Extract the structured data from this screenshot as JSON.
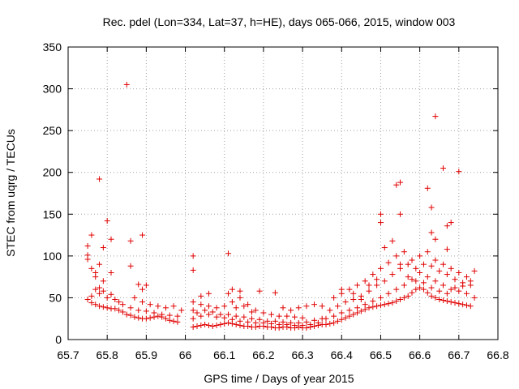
{
  "chart_data": {
    "type": "scatter",
    "title": "Rec. pdel (Lon=334, Lat=37, h=HE), days 065-066, 2015, window 003",
    "xlabel": "GPS time / Days of year 2015",
    "ylabel": "STEC from uqrg / TECUs",
    "xlim": [
      65.7,
      66.8
    ],
    "ylim": [
      0,
      350
    ],
    "xticks": [
      "65.7",
      "65.8",
      "65.9",
      "66",
      "66.1",
      "66.2",
      "66.3",
      "66.4",
      "66.5",
      "66.6",
      "66.7",
      "66.8"
    ],
    "yticks": [
      "0",
      "50",
      "100",
      "150",
      "200",
      "250",
      "300",
      "350"
    ],
    "grid": true,
    "marker": "+",
    "color": "#e00000",
    "series": [
      {
        "name": "STEC",
        "points": [
          [
            65.75,
            112
          ],
          [
            65.75,
            101
          ],
          [
            65.75,
            96
          ],
          [
            65.76,
            125
          ],
          [
            65.76,
            85
          ],
          [
            65.77,
            80
          ],
          [
            65.77,
            75
          ],
          [
            65.78,
            192
          ],
          [
            65.78,
            90
          ],
          [
            65.78,
            62
          ],
          [
            65.79,
            110
          ],
          [
            65.79,
            70
          ],
          [
            65.8,
            142
          ],
          [
            65.81,
            120
          ],
          [
            65.81,
            80
          ],
          [
            65.85,
            305
          ],
          [
            65.86,
            118
          ],
          [
            65.86,
            88
          ],
          [
            65.89,
            125
          ],
          [
            65.88,
            66
          ],
          [
            65.89,
            60
          ],
          [
            65.9,
            65
          ],
          [
            66.02,
            100
          ],
          [
            66.02,
            83
          ],
          [
            66.11,
            103
          ],
          [
            66.64,
            267
          ],
          [
            66.66,
            205
          ],
          [
            66.7,
            201
          ],
          [
            66.54,
            185
          ],
          [
            66.55,
            188
          ],
          [
            66.62,
            181
          ],
          [
            66.63,
            158
          ],
          [
            66.55,
            150
          ],
          [
            66.5,
            150
          ],
          [
            66.5,
            140
          ],
          [
            66.67,
            136
          ],
          [
            66.68,
            140
          ],
          [
            66.64,
            120
          ],
          [
            66.63,
            128
          ],
          [
            66.67,
            108
          ],
          [
            65.75,
            48
          ],
          [
            65.76,
            44
          ],
          [
            65.77,
            42
          ],
          [
            65.78,
            40
          ],
          [
            65.79,
            39
          ],
          [
            65.8,
            38
          ],
          [
            65.81,
            37
          ],
          [
            65.82,
            37
          ],
          [
            65.83,
            35
          ],
          [
            65.84,
            33
          ],
          [
            65.85,
            30
          ],
          [
            65.86,
            29
          ],
          [
            65.87,
            27
          ],
          [
            65.88,
            26
          ],
          [
            65.89,
            25
          ],
          [
            65.9,
            25
          ],
          [
            65.91,
            26
          ],
          [
            65.92,
            27
          ],
          [
            65.93,
            28
          ],
          [
            65.94,
            27
          ],
          [
            65.95,
            25
          ],
          [
            65.96,
            23
          ],
          [
            65.97,
            22
          ],
          [
            65.98,
            21
          ],
          [
            65.76,
            52
          ],
          [
            65.78,
            55
          ],
          [
            65.8,
            50
          ],
          [
            65.82,
            48
          ],
          [
            65.84,
            42
          ],
          [
            65.86,
            38
          ],
          [
            65.88,
            35
          ],
          [
            65.9,
            34
          ],
          [
            65.92,
            32
          ],
          [
            65.94,
            30
          ],
          [
            65.96,
            29
          ],
          [
            65.98,
            28
          ],
          [
            65.77,
            60
          ],
          [
            65.79,
            58
          ],
          [
            65.81,
            54
          ],
          [
            65.83,
            45
          ],
          [
            65.87,
            50
          ],
          [
            65.89,
            45
          ],
          [
            65.91,
            42
          ],
          [
            65.93,
            40
          ],
          [
            65.95,
            38
          ],
          [
            65.97,
            40
          ],
          [
            65.99,
            35
          ],
          [
            66.02,
            15
          ],
          [
            66.03,
            16
          ],
          [
            66.04,
            17
          ],
          [
            66.05,
            18
          ],
          [
            66.06,
            17
          ],
          [
            66.07,
            16
          ],
          [
            66.08,
            17
          ],
          [
            66.09,
            18
          ],
          [
            66.1,
            19
          ],
          [
            66.11,
            20
          ],
          [
            66.12,
            19
          ],
          [
            66.13,
            18
          ],
          [
            66.14,
            17
          ],
          [
            66.15,
            16
          ],
          [
            66.16,
            16
          ],
          [
            66.17,
            15
          ],
          [
            66.18,
            15
          ],
          [
            66.19,
            16
          ],
          [
            66.2,
            16
          ],
          [
            66.21,
            15
          ],
          [
            66.22,
            15
          ],
          [
            66.23,
            14
          ],
          [
            66.24,
            14
          ],
          [
            66.25,
            15
          ],
          [
            66.26,
            15
          ],
          [
            66.27,
            14
          ],
          [
            66.28,
            14
          ],
          [
            66.29,
            15
          ],
          [
            66.3,
            14
          ],
          [
            66.31,
            14
          ],
          [
            66.32,
            15
          ],
          [
            66.33,
            16
          ],
          [
            66.34,
            17
          ],
          [
            66.35,
            18
          ],
          [
            66.02,
            25
          ],
          [
            66.04,
            28
          ],
          [
            66.06,
            30
          ],
          [
            66.08,
            27
          ],
          [
            66.1,
            26
          ],
          [
            66.12,
            24
          ],
          [
            66.14,
            22
          ],
          [
            66.16,
            21
          ],
          [
            66.18,
            20
          ],
          [
            66.2,
            20
          ],
          [
            66.22,
            19
          ],
          [
            66.24,
            18
          ],
          [
            66.26,
            18
          ],
          [
            66.28,
            17
          ],
          [
            66.3,
            17
          ],
          [
            66.32,
            18
          ],
          [
            66.34,
            20
          ],
          [
            66.02,
            35
          ],
          [
            66.03,
            32
          ],
          [
            66.05,
            35
          ],
          [
            66.07,
            33
          ],
          [
            66.09,
            30
          ],
          [
            66.11,
            30
          ],
          [
            66.13,
            28
          ],
          [
            66.15,
            27
          ],
          [
            66.17,
            25
          ],
          [
            66.19,
            24
          ],
          [
            66.21,
            22
          ],
          [
            66.23,
            22
          ],
          [
            66.25,
            21
          ],
          [
            66.27,
            20
          ],
          [
            66.29,
            20
          ],
          [
            66.31,
            21
          ],
          [
            66.33,
            23
          ],
          [
            66.35,
            25
          ],
          [
            66.02,
            45
          ],
          [
            66.04,
            42
          ],
          [
            66.06,
            40
          ],
          [
            66.08,
            38
          ],
          [
            66.1,
            40
          ],
          [
            66.12,
            45
          ],
          [
            66.14,
            50
          ],
          [
            66.16,
            42
          ],
          [
            66.18,
            35
          ],
          [
            66.2,
            32
          ],
          [
            66.22,
            30
          ],
          [
            66.24,
            28
          ],
          [
            66.26,
            28
          ],
          [
            66.28,
            27
          ],
          [
            66.3,
            26
          ],
          [
            66.04,
            52
          ],
          [
            66.06,
            55
          ],
          [
            66.11,
            55
          ],
          [
            66.12,
            60
          ],
          [
            66.14,
            58
          ],
          [
            66.19,
            58
          ],
          [
            66.23,
            56
          ],
          [
            66.13,
            38
          ],
          [
            66.15,
            40
          ],
          [
            66.17,
            33
          ],
          [
            66.25,
            38
          ],
          [
            66.27,
            35
          ],
          [
            66.29,
            38
          ],
          [
            66.31,
            40
          ],
          [
            66.33,
            42
          ],
          [
            66.35,
            40
          ],
          [
            66.36,
            18
          ],
          [
            66.37,
            19
          ],
          [
            66.38,
            20
          ],
          [
            66.39,
            22
          ],
          [
            66.4,
            24
          ],
          [
            66.41,
            26
          ],
          [
            66.42,
            28
          ],
          [
            66.43,
            30
          ],
          [
            66.44,
            32
          ],
          [
            66.45,
            34
          ],
          [
            66.46,
            36
          ],
          [
            66.47,
            38
          ],
          [
            66.48,
            39
          ],
          [
            66.49,
            40
          ],
          [
            66.5,
            41
          ],
          [
            66.51,
            42
          ],
          [
            66.52,
            43
          ],
          [
            66.53,
            44
          ],
          [
            66.54,
            46
          ],
          [
            66.55,
            48
          ],
          [
            66.56,
            50
          ],
          [
            66.57,
            52
          ],
          [
            66.58,
            56
          ],
          [
            66.59,
            60
          ],
          [
            66.6,
            62
          ],
          [
            66.61,
            60
          ],
          [
            66.62,
            56
          ],
          [
            66.63,
            52
          ],
          [
            66.64,
            50
          ],
          [
            66.65,
            48
          ],
          [
            66.66,
            47
          ],
          [
            66.67,
            46
          ],
          [
            66.68,
            45
          ],
          [
            66.69,
            44
          ],
          [
            66.7,
            43
          ],
          [
            66.71,
            42
          ],
          [
            66.72,
            41
          ],
          [
            66.73,
            40
          ],
          [
            66.36,
            25
          ],
          [
            66.38,
            28
          ],
          [
            66.4,
            32
          ],
          [
            66.42,
            35
          ],
          [
            66.44,
            38
          ],
          [
            66.46,
            42
          ],
          [
            66.48,
            46
          ],
          [
            66.5,
            50
          ],
          [
            66.52,
            55
          ],
          [
            66.54,
            60
          ],
          [
            66.56,
            65
          ],
          [
            66.58,
            72
          ],
          [
            66.6,
            80
          ],
          [
            66.62,
            75
          ],
          [
            66.64,
            70
          ],
          [
            66.66,
            65
          ],
          [
            66.68,
            60
          ],
          [
            66.7,
            58
          ],
          [
            66.72,
            55
          ],
          [
            66.74,
            50
          ],
          [
            66.37,
            35
          ],
          [
            66.39,
            40
          ],
          [
            66.41,
            45
          ],
          [
            66.43,
            48
          ],
          [
            66.45,
            52
          ],
          [
            66.47,
            58
          ],
          [
            66.49,
            65
          ],
          [
            66.51,
            70
          ],
          [
            66.53,
            78
          ],
          [
            66.55,
            85
          ],
          [
            66.57,
            90
          ],
          [
            66.59,
            85
          ],
          [
            66.61,
            90
          ],
          [
            66.63,
            88
          ],
          [
            66.65,
            82
          ],
          [
            66.67,
            78
          ],
          [
            66.69,
            72
          ],
          [
            66.71,
            68
          ],
          [
            66.73,
            65
          ],
          [
            66.38,
            50
          ],
          [
            66.4,
            55
          ],
          [
            66.42,
            60
          ],
          [
            66.44,
            65
          ],
          [
            66.46,
            70
          ],
          [
            66.48,
            78
          ],
          [
            66.5,
            85
          ],
          [
            66.52,
            92
          ],
          [
            66.54,
            100
          ],
          [
            66.56,
            105
          ],
          [
            66.58,
            95
          ],
          [
            66.6,
            100
          ],
          [
            66.62,
            105
          ],
          [
            66.64,
            95
          ],
          [
            66.66,
            90
          ],
          [
            66.68,
            85
          ],
          [
            66.7,
            80
          ],
          [
            66.72,
            75
          ],
          [
            66.74,
            82
          ],
          [
            66.4,
            60
          ],
          [
            66.43,
            55
          ],
          [
            66.45,
            48
          ],
          [
            66.47,
            65
          ],
          [
            66.49,
            72
          ],
          [
            66.51,
            110
          ],
          [
            66.53,
            118
          ],
          [
            66.55,
            90
          ],
          [
            66.57,
            75
          ],
          [
            66.59,
            70
          ],
          [
            66.61,
            68
          ],
          [
            66.63,
            62
          ],
          [
            66.65,
            58
          ],
          [
            66.67,
            55
          ],
          [
            66.69,
            62
          ],
          [
            66.71,
            64
          ],
          [
            66.73,
            70
          ]
        ]
      }
    ]
  }
}
